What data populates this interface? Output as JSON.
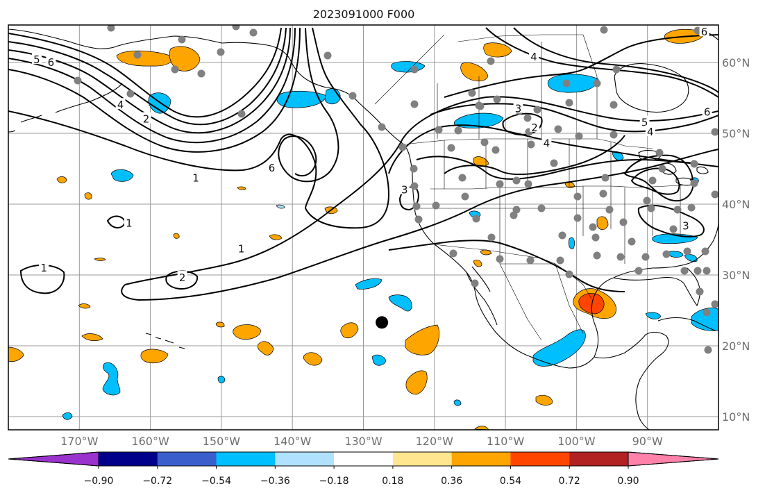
{
  "title": "2023091000 F000",
  "map": {
    "lon_range": [
      -180,
      -80
    ],
    "lat_range": [
      8,
      65
    ],
    "lon_ticks": [
      {
        "lon": -170,
        "label": "170°W"
      },
      {
        "lon": -160,
        "label": "160°W"
      },
      {
        "lon": -150,
        "label": "150°W"
      },
      {
        "lon": -140,
        "label": "140°W"
      },
      {
        "lon": -130,
        "label": "130°W"
      },
      {
        "lon": -120,
        "label": "120°W"
      },
      {
        "lon": -110,
        "label": "110°W"
      },
      {
        "lon": -100,
        "label": "100°W"
      },
      {
        "lon": -90,
        "label": "90°W"
      }
    ],
    "lat_ticks": [
      {
        "lat": 60,
        "label": "60°N"
      },
      {
        "lat": 50,
        "label": "50°N"
      },
      {
        "lat": 40,
        "label": "40°N"
      },
      {
        "lat": 30,
        "label": "30°N"
      },
      {
        "lat": 20,
        "label": "20°N"
      },
      {
        "lat": 10,
        "label": "10°N"
      }
    ],
    "grid": true,
    "storm_marker": {
      "lon": -127.4,
      "lat": 23.3
    },
    "contour_labels": [
      {
        "text": "6",
        "lon": -174.0,
        "lat": 60.0
      },
      {
        "text": "5",
        "lon": -176.0,
        "lat": 60.4
      },
      {
        "text": "4",
        "lon": -164.2,
        "lat": 54.0
      },
      {
        "text": "2",
        "lon": -160.6,
        "lat": 52.0
      },
      {
        "text": "1",
        "lon": -163.0,
        "lat": 37.3
      },
      {
        "text": "1",
        "lon": -153.6,
        "lat": 43.7
      },
      {
        "text": "1",
        "lon": -175.0,
        "lat": 31.0
      },
      {
        "text": "1",
        "lon": -147.2,
        "lat": 33.7
      },
      {
        "text": "2",
        "lon": -155.5,
        "lat": 29.6
      },
      {
        "text": "6",
        "lon": -142.9,
        "lat": 45.1
      },
      {
        "text": "3",
        "lon": -124.2,
        "lat": 42.0
      },
      {
        "text": "3",
        "lon": -108.2,
        "lat": 53.5
      },
      {
        "text": "2",
        "lon": -105.9,
        "lat": 50.8
      },
      {
        "text": "4",
        "lon": -104.2,
        "lat": 48.6
      },
      {
        "text": "5",
        "lon": -90.4,
        "lat": 51.5
      },
      {
        "text": "4",
        "lon": -89.6,
        "lat": 50.2
      },
      {
        "text": "6",
        "lon": -81.6,
        "lat": 53.0
      },
      {
        "text": "3",
        "lon": -84.6,
        "lat": 36.9
      },
      {
        "text": "4",
        "lon": -106.0,
        "lat": 60.8
      },
      {
        "text": "6",
        "lon": -82.0,
        "lat": 64.3
      }
    ],
    "colors": {
      "purple": "#9a32cd",
      "navy": "#00008b",
      "royal": "#3a5fcd",
      "deepsky": "#00bfff",
      "lightsky": "#b0e2ff",
      "white": "#ffffff",
      "khaki": "#ffe68f",
      "orange": "#ffa500",
      "orangered": "#ff4500",
      "firebrick": "#b22222",
      "pink": "#ff82ab",
      "station": "#808080"
    }
  },
  "colorbar": {
    "levels": [
      -0.9,
      -0.72,
      -0.54,
      -0.36,
      -0.18,
      0.18,
      0.36,
      0.54,
      0.72,
      0.9
    ],
    "tick_labels": [
      "−0.90",
      "−0.72",
      "−0.54",
      "−0.36",
      "−0.18",
      "0.18",
      "0.36",
      "0.54",
      "0.72",
      "0.90"
    ],
    "colors": [
      "#9a32cd",
      "#00008b",
      "#3a5fcd",
      "#00bfff",
      "#b0e2ff",
      "#ffffff",
      "#ffe68f",
      "#ffa500",
      "#ff4500",
      "#b22222",
      "#ff82ab"
    ],
    "extend": "both"
  }
}
